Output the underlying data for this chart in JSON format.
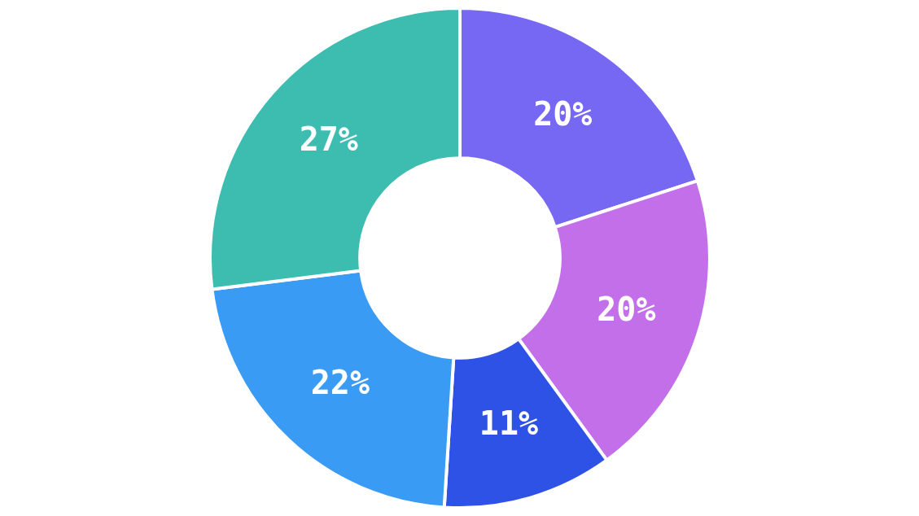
{
  "chart_data": {
    "type": "donut",
    "categories": [
      null,
      null,
      null,
      null,
      null
    ],
    "values": [
      20,
      20,
      11,
      22,
      27
    ],
    "colors": [
      "#7668f2",
      "#c46fea",
      "#2e52e6",
      "#3a9bf4",
      "#3dbcb0"
    ],
    "value_labels": [
      "20%",
      "20%",
      "11%",
      "22%",
      "27%"
    ]
  }
}
